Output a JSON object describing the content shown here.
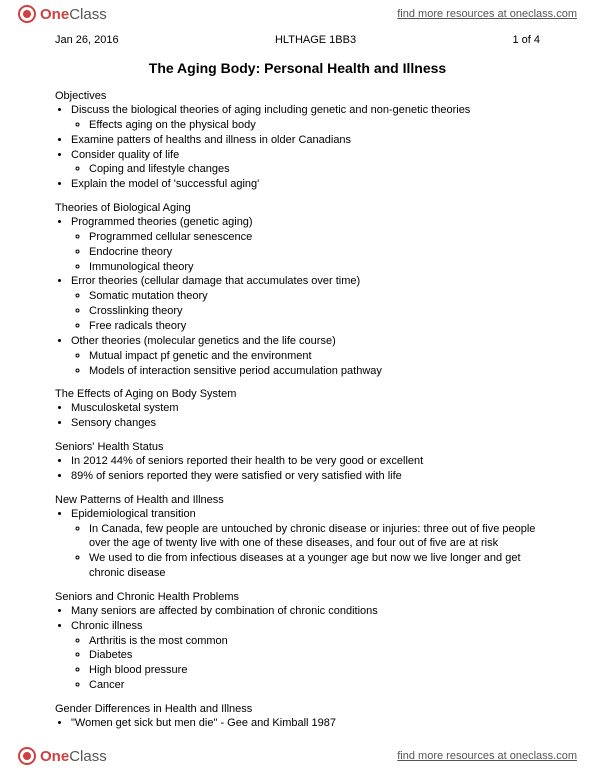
{
  "brand": {
    "one": "One",
    "class": "Class"
  },
  "findLink": "find more resources at oneclass.com",
  "meta": {
    "date": "Jan 26, 2016",
    "course": "HLTHAGE 1BB3",
    "page": "1 of 4"
  },
  "title": "The Aging Body: Personal Health and Illness",
  "sections": {
    "objectives": {
      "heading": "Objectives",
      "items": [
        {
          "text": "Discuss the biological theories of aging including genetic and non-genetic theories",
          "sub": [
            "Effects aging on the physical body"
          ]
        },
        {
          "text": "Examine patters of healths and illness in older Canadians"
        },
        {
          "text": "Consider quality of life",
          "sub": [
            "Coping and lifestyle changes"
          ]
        },
        {
          "text": "Explain the model of 'successful aging'"
        }
      ]
    },
    "theories": {
      "heading": "Theories of Biological Aging",
      "items": [
        {
          "text": "Programmed theories (genetic aging)",
          "sub": [
            "Programmed cellular senescence",
            "Endocrine theory",
            "Immunological theory"
          ]
        },
        {
          "text": "Error theories (cellular damage that accumulates over time)",
          "sub": [
            "Somatic mutation theory",
            "Crosslinking theory",
            "Free radicals theory"
          ]
        },
        {
          "text": "Other theories (molecular genetics and the life course)",
          "sub": [
            "Mutual impact pf genetic and the environment",
            "Models of interaction sensitive period accumulation pathway"
          ]
        }
      ]
    },
    "effects": {
      "heading": "The Effects of Aging on Body System",
      "items": [
        {
          "text": "Musculosketal system"
        },
        {
          "text": "Sensory changes"
        }
      ]
    },
    "status": {
      "heading": "Seniors' Health Status",
      "items": [
        {
          "text": "In 2012 44% of seniors reported their health to be very good or excellent"
        },
        {
          "text": "89% of seniors reported they were satisfied or very satisfied with life"
        }
      ]
    },
    "patterns": {
      "heading": "New Patterns of Health and Illness",
      "items": [
        {
          "text": "Epidemiological transition",
          "sub": [
            "In Canada, few people are untouched by chronic disease or injuries: three out of five people over the age of twenty live with one of these diseases, and four out of five are at risk",
            "We used to die from infectious diseases at a younger age but now we live longer and get chronic disease"
          ]
        }
      ]
    },
    "chronic": {
      "heading": "Seniors and Chronic Health Problems",
      "items": [
        {
          "text": "Many seniors are affected by combination of chronic conditions"
        },
        {
          "text": "Chronic illness",
          "sub": [
            "Arthritis is the most common",
            "Diabetes",
            "High blood pressure",
            "Cancer"
          ]
        }
      ]
    },
    "gender": {
      "heading": "Gender Differences in Health and Illness",
      "items": [
        {
          "text": "\"Women get sick but men die\" - Gee and Kimball 1987"
        }
      ]
    }
  }
}
